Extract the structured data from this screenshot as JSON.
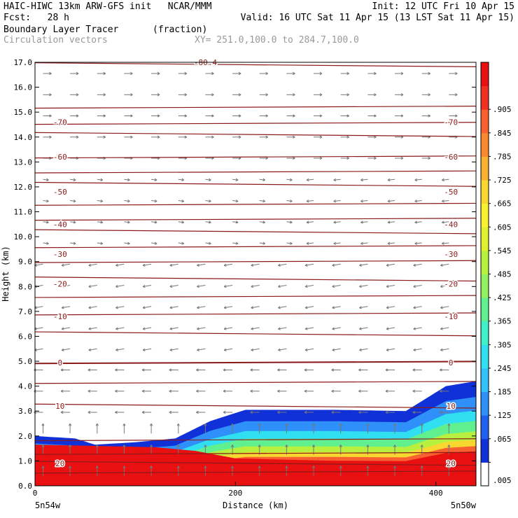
{
  "header": {
    "line1_left": "HAIC-HIWC 13km ARW-GFS init   NCAR/MMM",
    "line1_right": "Init: 12 UTC Fri 10 Apr 15",
    "line2_left": "Fcst:   28 h",
    "line2_right": "Valid: 16 UTC Sat 11 Apr 15 (13 LST Sat 11 Apr 15)",
    "line3_left": "Boundary Layer Tracer",
    "line3_units": "(fraction)",
    "line4_left": "Circulation vectors",
    "line4_xy": "XY= 251.0,100.0 to 284.7,100.0"
  },
  "chart_data": {
    "type": "heatmap",
    "ylabel": "Height (km)",
    "xlabel": "Distance (km)",
    "xlim": [
      0,
      440
    ],
    "ylim": [
      0,
      17
    ],
    "yticks": [
      "0.0",
      "1.0",
      "2.0",
      "3.0",
      "4.0",
      "5.0",
      "6.0",
      "7.0",
      "8.0",
      "9.0",
      "10.0",
      "11.0",
      "12.0",
      "13.0",
      "14.0",
      "15.0",
      "16.0",
      "17.0"
    ],
    "xticks": [
      {
        "value": 0,
        "label": "0"
      },
      {
        "value": 200,
        "label": "200"
      },
      {
        "value": 400,
        "label": "400"
      }
    ],
    "endpoint_labels": {
      "left": "5n54w",
      "right": "5n50w"
    },
    "colorbar": {
      "labels": [
        ".005",
        ".065",
        ".125",
        ".185",
        ".245",
        ".305",
        ".365",
        ".425",
        ".485",
        ".545",
        ".605",
        ".665",
        ".725",
        ".785",
        ".845",
        ".905"
      ],
      "colors": [
        "#ffffff",
        "#1030d8",
        "#2060ee",
        "#2e90f8",
        "#30c0fa",
        "#30e0f0",
        "#40f0c8",
        "#60f090",
        "#90f060",
        "#b8f040",
        "#e0f030",
        "#f8f030",
        "#f8d830",
        "#f8b030",
        "#f88830",
        "#f86030",
        "#f03020",
        "#e81010"
      ]
    },
    "isotherm_labels": [
      {
        "value": "-70",
        "height": 14.6
      },
      {
        "value": "-60",
        "height": 13.2
      },
      {
        "value": "-50",
        "height": 11.8
      },
      {
        "value": "-40",
        "height": 10.5
      },
      {
        "value": "-30",
        "height": 9.3
      },
      {
        "value": "-20",
        "height": 8.1
      },
      {
        "value": "-10",
        "height": 6.8
      },
      {
        "value": "0",
        "height": 4.95
      },
      {
        "value": "10",
        "height": 3.2
      },
      {
        "value": "20",
        "height": 0.9
      },
      {
        "value": "-80.4",
        "height": 17.0
      }
    ],
    "tracer_top_km": [
      {
        "x": 0,
        "top": 2.0
      },
      {
        "x": 40,
        "top": 1.9
      },
      {
        "x": 60,
        "top": 1.65
      },
      {
        "x": 100,
        "top": 1.75
      },
      {
        "x": 140,
        "top": 1.9
      },
      {
        "x": 175,
        "top": 2.6
      },
      {
        "x": 210,
        "top": 3.05
      },
      {
        "x": 300,
        "top": 3.05
      },
      {
        "x": 370,
        "top": 3.0
      },
      {
        "x": 410,
        "top": 4.0
      },
      {
        "x": 440,
        "top": 4.2
      }
    ],
    "grid": false
  }
}
